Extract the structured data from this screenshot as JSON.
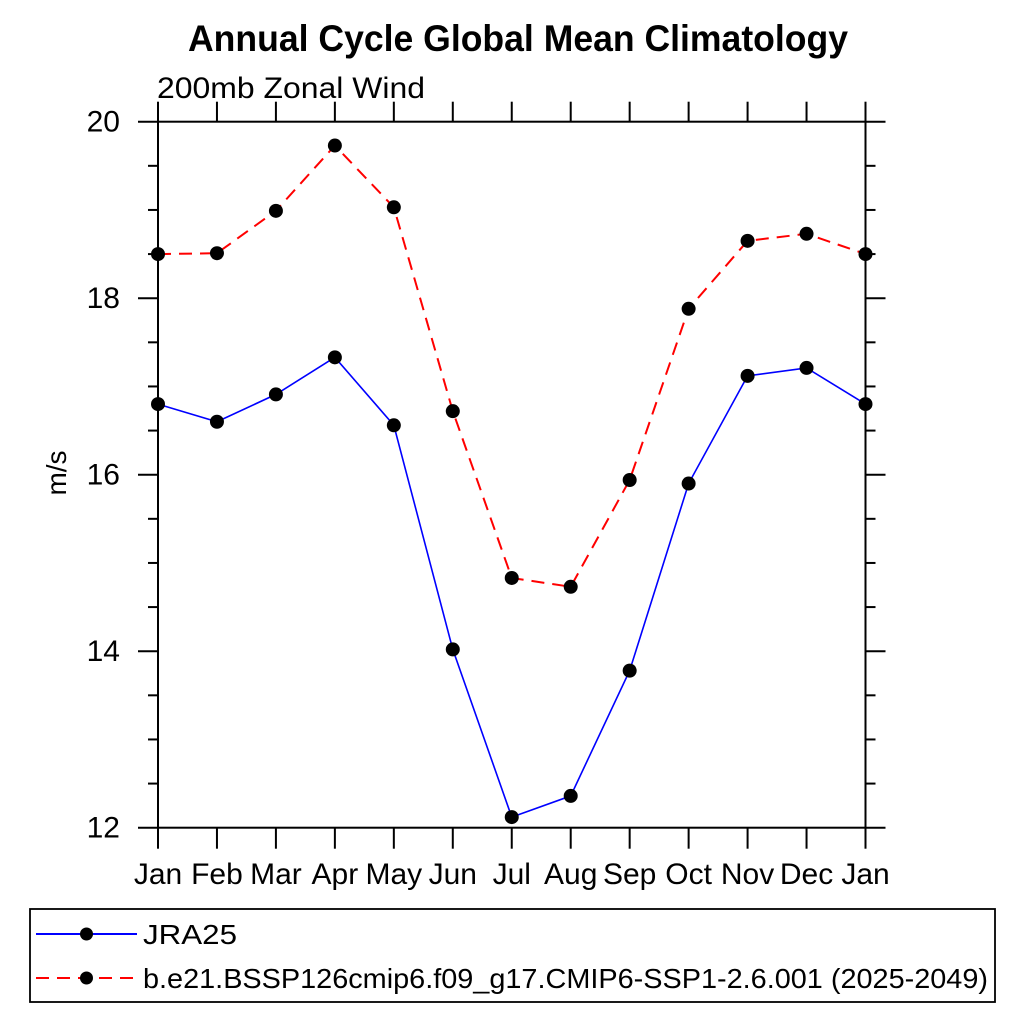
{
  "chart_data": {
    "type": "line",
    "title": "Annual Cycle Global Mean Climatology",
    "subtitle": "200mb Zonal Wind",
    "ylabel": "m/s",
    "xlabel": "",
    "categories": [
      "Jan",
      "Feb",
      "Mar",
      "Apr",
      "May",
      "Jun",
      "Jul",
      "Aug",
      "Sep",
      "Oct",
      "Nov",
      "Dec",
      "Jan"
    ],
    "ylim": [
      12,
      20
    ],
    "yticks_major": [
      12,
      14,
      16,
      18,
      20
    ],
    "ytick_minor_step": 0.5,
    "grid": false,
    "legend_position": "bottom-left-box",
    "axis_color": "#000000",
    "marker_shape": "filled-circle",
    "marker_color": "#000000",
    "series": [
      {
        "name": "JRA25",
        "color": "#0000ff",
        "line_style": "solid",
        "values": [
          16.8,
          16.6,
          16.91,
          17.33,
          16.56,
          14.02,
          12.12,
          12.36,
          13.78,
          15.9,
          17.12,
          17.21,
          16.8
        ]
      },
      {
        "name": "b.e21.BSSP126cmip6.f09_g17.CMIP6-SSP1-2.6.001 (2025-2049)",
        "color": "#ff0000",
        "line_style": "dashed",
        "values": [
          18.5,
          18.51,
          18.99,
          19.73,
          19.03,
          16.72,
          14.83,
          14.73,
          15.94,
          17.88,
          18.65,
          18.73,
          18.5
        ]
      }
    ]
  }
}
